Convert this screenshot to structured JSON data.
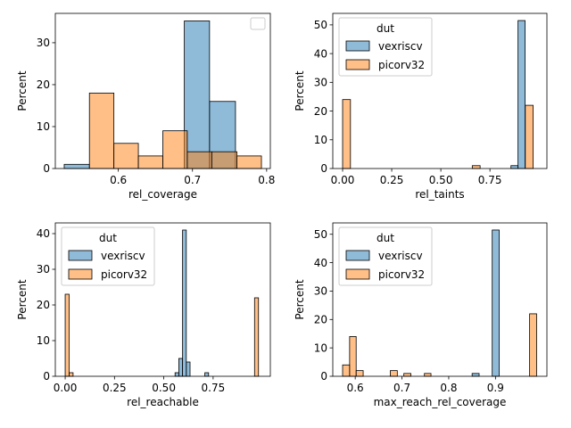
{
  "colors": {
    "vexriscv": "#1f77b4",
    "picorv32": "#ff7f0e",
    "edge": "#000000"
  },
  "chart_data": [
    {
      "type": "bar",
      "xlabel": "rel_coverage",
      "ylabel": "Percent",
      "xlim": [
        0.515,
        0.805
      ],
      "ylim": [
        0,
        37
      ],
      "xticks": [
        0.6,
        0.7,
        0.8
      ],
      "xtick_labels": [
        "0.6",
        "0.7",
        "0.8"
      ],
      "yticks": [
        0,
        10,
        20,
        30
      ],
      "ytick_labels": [
        "0",
        "10",
        "20",
        "30"
      ],
      "legend": {
        "loc": "upper right",
        "title": "",
        "entries": []
      },
      "series": [
        {
          "name": "vexriscv",
          "bins": [
            [
              0.527,
              0.561,
              1
            ],
            [
              0.689,
              0.723,
              35.2
            ],
            [
              0.723,
              0.758,
              16
            ]
          ]
        },
        {
          "name": "picorv32",
          "bins": [
            [
              0.561,
              0.594,
              18
            ],
            [
              0.594,
              0.627,
              6
            ],
            [
              0.627,
              0.66,
              3
            ],
            [
              0.66,
              0.693,
              9
            ],
            [
              0.693,
              0.726,
              4
            ],
            [
              0.726,
              0.76,
              4
            ],
            [
              0.76,
              0.793,
              3
            ]
          ]
        }
      ]
    },
    {
      "type": "bar",
      "xlabel": "rel_taints",
      "ylabel": "Percent",
      "xlim": [
        -0.05,
        1.04
      ],
      "ylim": [
        0,
        54
      ],
      "xticks": [
        0,
        0.25,
        0.5,
        0.75
      ],
      "xtick_labels": [
        "0.00",
        "0.25",
        "0.50",
        "0.75"
      ],
      "yticks": [
        0,
        10,
        20,
        30,
        40,
        50
      ],
      "ytick_labels": [
        "0",
        "10",
        "20",
        "30",
        "40",
        "50"
      ],
      "legend": {
        "loc": "upper left",
        "title": "dut",
        "entries": [
          "vexriscv",
          "picorv32"
        ]
      },
      "series": [
        {
          "name": "vexriscv",
          "bins": [
            [
              0.857,
              0.893,
              1
            ],
            [
              0.893,
              0.929,
              51.5
            ]
          ]
        },
        {
          "name": "picorv32",
          "bins": [
            [
              0.0,
              0.04,
              24
            ],
            [
              0.66,
              0.7,
              1
            ],
            [
              0.93,
              0.97,
              22
            ]
          ]
        }
      ]
    },
    {
      "type": "bar",
      "xlabel": "rel_reachable",
      "ylabel": "Percent",
      "xlim": [
        -0.05,
        1.04
      ],
      "ylim": [
        0,
        43
      ],
      "xticks": [
        0,
        0.25,
        0.5,
        0.75
      ],
      "xtick_labels": [
        "0.00",
        "0.25",
        "0.50",
        "0.75"
      ],
      "yticks": [
        0,
        10,
        20,
        30,
        40
      ],
      "ytick_labels": [
        "0",
        "10",
        "20",
        "30",
        "40"
      ],
      "legend": {
        "loc": "upper left",
        "title": "dut",
        "entries": [
          "vexriscv",
          "picorv32"
        ]
      },
      "series": [
        {
          "name": "vexriscv",
          "bins": [
            [
              0.557,
              0.576,
              1
            ],
            [
              0.576,
              0.595,
              5
            ],
            [
              0.595,
              0.614,
              41
            ],
            [
              0.614,
              0.633,
              4
            ],
            [
              0.708,
              0.727,
              1
            ]
          ]
        },
        {
          "name": "picorv32",
          "bins": [
            [
              0.0,
              0.02,
              23
            ],
            [
              0.02,
              0.04,
              1
            ],
            [
              0.96,
              0.98,
              22
            ]
          ]
        }
      ]
    },
    {
      "type": "bar",
      "xlabel": "max_reach_rel_coverage",
      "ylabel": "Percent",
      "xlim": [
        0.552,
        1.01
      ],
      "ylim": [
        0,
        54
      ],
      "xticks": [
        0.6,
        0.7,
        0.8,
        0.9
      ],
      "xtick_labels": [
        "0.6",
        "0.7",
        "0.8",
        "0.9"
      ],
      "yticks": [
        0,
        10,
        20,
        30,
        40,
        50
      ],
      "ytick_labels": [
        "0",
        "10",
        "20",
        "30",
        "40",
        "50"
      ],
      "legend": {
        "loc": "upper left",
        "title": "dut",
        "entries": [
          "vexriscv",
          "picorv32"
        ]
      },
      "series": [
        {
          "name": "vexriscv",
          "bins": [
            [
              0.85,
              0.865,
              1
            ],
            [
              0.893,
              0.908,
              51.5
            ]
          ]
        },
        {
          "name": "picorv32",
          "bins": [
            [
              0.573,
              0.588,
              4
            ],
            [
              0.588,
              0.602,
              14
            ],
            [
              0.602,
              0.617,
              2
            ],
            [
              0.675,
              0.69,
              2
            ],
            [
              0.704,
              0.719,
              1
            ],
            [
              0.748,
              0.762,
              1
            ],
            [
              0.973,
              0.988,
              22
            ]
          ]
        }
      ]
    }
  ]
}
